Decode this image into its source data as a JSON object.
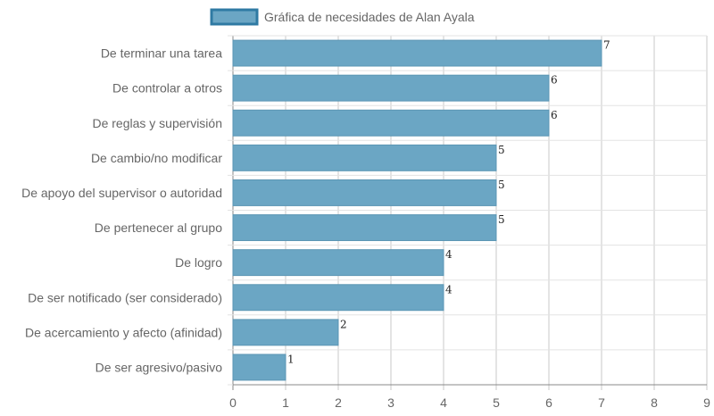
{
  "chart_data": {
    "type": "bar",
    "orientation": "horizontal",
    "legend": {
      "label": "Gráfica de necesidades de Alan Ayala",
      "placement": "top-center"
    },
    "categories": [
      "De terminar una tarea",
      "De controlar a otros",
      "De reglas y supervisión",
      "De cambio/no modificar",
      "De apoyo del supervisor o autoridad",
      "De pertenecer al grupo",
      "De logro",
      "De ser notificado (ser considerado)",
      "De acercamiento y afecto (afinidad)",
      "De ser agresivo/pasivo"
    ],
    "values": [
      7,
      6,
      6,
      5,
      5,
      5,
      4,
      4,
      2,
      1
    ],
    "xlim": [
      0,
      9
    ],
    "xticks": [
      "0",
      "1",
      "2",
      "3",
      "4",
      "5",
      "6",
      "7",
      "8",
      "9"
    ],
    "grid": true,
    "colors": {
      "bar_fill": "#6ba6c4",
      "bar_stroke": "#5b96b4",
      "legend_fill": "#6ba6c4",
      "legend_stroke": "#2f7aa3",
      "grid": "#e3e3e3",
      "axis": "#888888"
    }
  }
}
